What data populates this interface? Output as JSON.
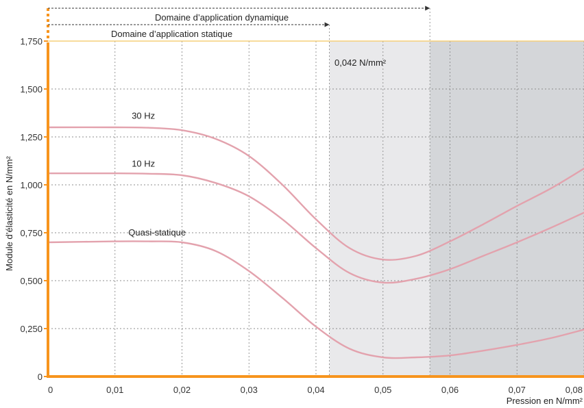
{
  "chart_data": {
    "type": "line",
    "title": "",
    "xlabel": "Pression en N/mm²",
    "ylabel": "Module d’élasticité en N/mm²",
    "xlim": [
      0,
      0.08
    ],
    "ylim": [
      0,
      1.75
    ],
    "x_ticks": [
      0,
      0.01,
      0.02,
      0.03,
      0.04,
      0.05,
      0.06,
      0.07,
      0.08
    ],
    "x_tick_labels": [
      "0",
      "0,01",
      "0,02",
      "0,03",
      "0,04",
      "0,05",
      "0,06",
      "0,07",
      "0,08"
    ],
    "y_ticks": [
      0,
      0.25,
      0.5,
      0.75,
      1.0,
      1.25,
      1.5,
      1.75
    ],
    "y_tick_labels": [
      "0",
      "0,250",
      "0,500",
      "0,750",
      "1,000",
      "1,250",
      "1,500",
      "1,750"
    ],
    "grid": true,
    "regions": {
      "static_limit": 0.042,
      "dynamic_limit": 0.057,
      "static_label": "Domaine d’application statique",
      "dynamic_label": "Domaine d’application dynamique",
      "threshold_label": "0,042 N/mm²",
      "light_color": "#e9e9eb",
      "dark_color": "#d4d6d9"
    },
    "series": [
      {
        "name": "30 Hz",
        "color": "#e3a2ad",
        "x": [
          0,
          0.01,
          0.015,
          0.02,
          0.025,
          0.03,
          0.035,
          0.04,
          0.045,
          0.05,
          0.055,
          0.06,
          0.065,
          0.07,
          0.075,
          0.08
        ],
        "y": [
          1.3,
          1.3,
          1.298,
          1.285,
          1.24,
          1.15,
          1.0,
          0.82,
          0.67,
          0.61,
          0.63,
          0.705,
          0.795,
          0.89,
          0.98,
          1.085
        ]
      },
      {
        "name": "10 Hz",
        "color": "#e3a2ad",
        "x": [
          0,
          0.01,
          0.015,
          0.02,
          0.025,
          0.03,
          0.035,
          0.04,
          0.045,
          0.05,
          0.055,
          0.06,
          0.065,
          0.07,
          0.075,
          0.08
        ],
        "y": [
          1.06,
          1.06,
          1.058,
          1.05,
          1.01,
          0.94,
          0.82,
          0.67,
          0.54,
          0.49,
          0.51,
          0.56,
          0.63,
          0.7,
          0.775,
          0.855
        ]
      },
      {
        "name": "Quasi-statique",
        "color": "#e3a2ad",
        "x": [
          0,
          0.01,
          0.015,
          0.02,
          0.025,
          0.03,
          0.035,
          0.04,
          0.045,
          0.05,
          0.055,
          0.06,
          0.065,
          0.07,
          0.075,
          0.08
        ],
        "y": [
          0.7,
          0.705,
          0.705,
          0.7,
          0.655,
          0.55,
          0.41,
          0.26,
          0.145,
          0.1,
          0.1,
          0.11,
          0.135,
          0.165,
          0.2,
          0.245
        ]
      }
    ],
    "label_positions": [
      {
        "series": 0,
        "x": 0.0125,
        "y": 1.345
      },
      {
        "series": 1,
        "x": 0.0125,
        "y": 1.095
      },
      {
        "series": 2,
        "x": 0.012,
        "y": 0.735
      }
    ],
    "colors": {
      "axis": "#f7941d",
      "limit_line": "#f5cf7a",
      "curve": "#e3a2ad"
    }
  }
}
